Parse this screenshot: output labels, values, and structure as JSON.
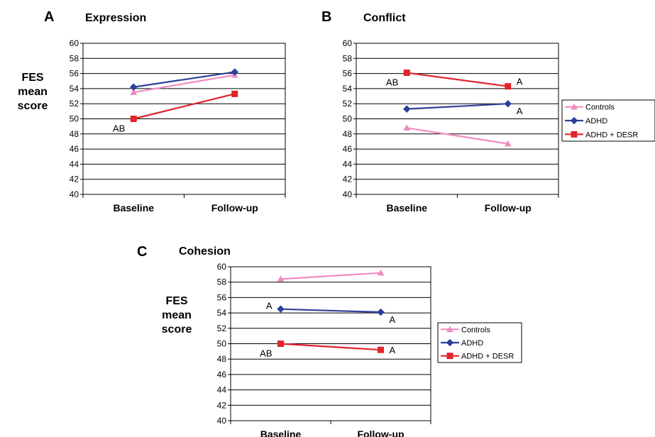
{
  "chart_data": [
    {
      "panel": "A",
      "type": "line",
      "title": "Expression",
      "ylabel": "FES mean score",
      "categories": [
        "Baseline",
        "Follow-up"
      ],
      "ylim": [
        40,
        60
      ],
      "yticks": [
        40,
        42,
        44,
        46,
        48,
        50,
        52,
        54,
        56,
        58,
        60
      ],
      "grid": true,
      "legend": null,
      "series": [
        {
          "name": "Controls",
          "color": "#F08CBE",
          "marker": "triangle",
          "values": [
            53.5,
            55.8
          ]
        },
        {
          "name": "ADHD",
          "color": "#2E3F99",
          "marker": "diamond",
          "values": [
            54.2,
            56.2
          ]
        },
        {
          "name": "ADHD + DESR",
          "color": "#E0242A",
          "marker": "square",
          "values": [
            50.0,
            53.3
          ]
        }
      ],
      "annotations": [
        {
          "text": "AB",
          "series": "ADHD + DESR",
          "point": 0,
          "side": "below-left"
        }
      ]
    },
    {
      "panel": "B",
      "type": "line",
      "title": "Conflict",
      "ylabel": "",
      "categories": [
        "Baseline",
        "Follow-up"
      ],
      "ylim": [
        40,
        60
      ],
      "yticks": [
        40,
        42,
        44,
        46,
        48,
        50,
        52,
        54,
        56,
        58,
        60
      ],
      "grid": true,
      "legend": "right",
      "series": [
        {
          "name": "Controls",
          "color": "#F08CBE",
          "marker": "triangle",
          "values": [
            48.8,
            46.7
          ]
        },
        {
          "name": "ADHD",
          "color": "#2E3F99",
          "marker": "diamond",
          "values": [
            51.3,
            52.0
          ]
        },
        {
          "name": "ADHD + DESR",
          "color": "#E0242A",
          "marker": "square",
          "values": [
            56.1,
            54.3
          ]
        }
      ],
      "annotations": [
        {
          "text": "AB",
          "series": "ADHD + DESR",
          "point": 0,
          "side": "below-left"
        },
        {
          "text": "A",
          "series": "ADHD + DESR",
          "point": 1,
          "side": "above-right"
        },
        {
          "text": "A",
          "series": "ADHD",
          "point": 1,
          "side": "below-right"
        }
      ]
    },
    {
      "panel": "C",
      "type": "line",
      "title": "Cohesion",
      "ylabel": "FES mean score",
      "categories": [
        "Baseline",
        "Follow-up"
      ],
      "ylim": [
        40,
        60
      ],
      "yticks": [
        40,
        42,
        44,
        46,
        48,
        50,
        52,
        54,
        56,
        58,
        60
      ],
      "grid": true,
      "legend": "right",
      "series": [
        {
          "name": "Controls",
          "color": "#F08CBE",
          "marker": "triangle",
          "values": [
            58.4,
            59.2
          ]
        },
        {
          "name": "ADHD",
          "color": "#2E3F99",
          "marker": "diamond",
          "values": [
            54.5,
            54.1
          ]
        },
        {
          "name": "ADHD + DESR",
          "color": "#E0242A",
          "marker": "square",
          "values": [
            50.0,
            49.2
          ]
        }
      ],
      "annotations": [
        {
          "text": "A",
          "series": "ADHD",
          "point": 0,
          "side": "above-left"
        },
        {
          "text": "A",
          "series": "ADHD",
          "point": 1,
          "side": "below-right"
        },
        {
          "text": "AB",
          "series": "ADHD + DESR",
          "point": 0,
          "side": "below-left"
        },
        {
          "text": "A",
          "series": "ADHD + DESR",
          "point": 1,
          "side": "right"
        }
      ]
    }
  ]
}
